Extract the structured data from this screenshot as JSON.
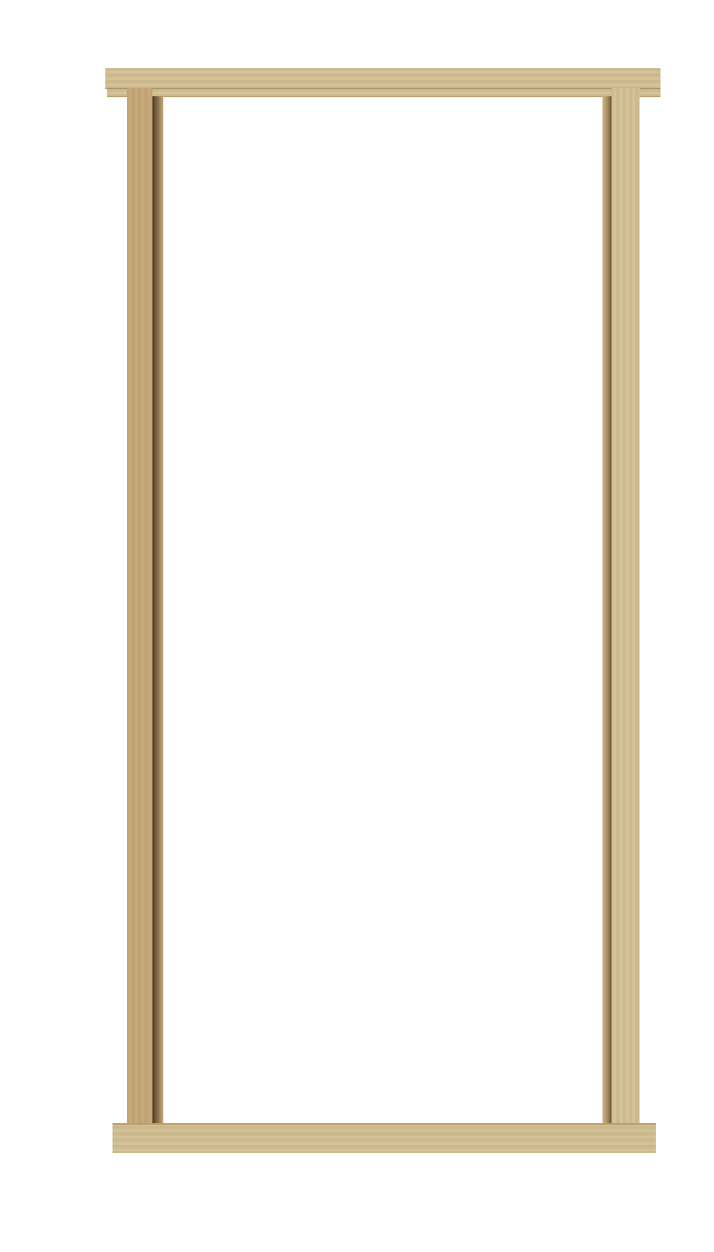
{
  "colors": {
    "background": "#ffffff",
    "wood_light": "#d2bf94",
    "wood_mid": "#c4a777",
    "wood_dark": "#a8895a",
    "shadow": "#5a4a2e"
  }
}
